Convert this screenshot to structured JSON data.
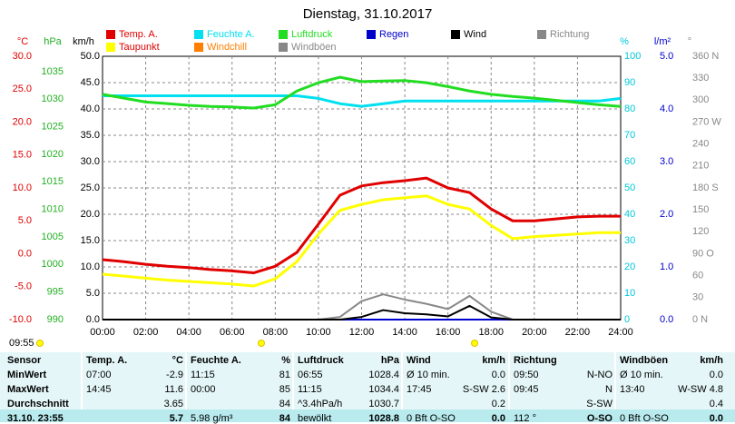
{
  "chart_data": {
    "type": "line",
    "title": "Dienstag, 31.10.2017",
    "x": [
      0,
      1,
      2,
      3,
      4,
      5,
      6,
      7,
      8,
      9,
      10,
      11,
      12,
      13,
      14,
      15,
      16,
      17,
      18,
      19,
      20,
      21,
      22,
      23,
      24
    ],
    "xlim": [
      0,
      24
    ],
    "xticks": [
      {
        "value": 0,
        "label": "00:00"
      },
      {
        "value": 2,
        "label": "02:00"
      },
      {
        "value": 4,
        "label": "04:00"
      },
      {
        "value": 6,
        "label": "06:00"
      },
      {
        "value": 8,
        "label": "08:00"
      },
      {
        "value": 10,
        "label": "10:00"
      },
      {
        "value": 12,
        "label": "12:00"
      },
      {
        "value": 14,
        "label": "14:00"
      },
      {
        "value": 16,
        "label": "16:00"
      },
      {
        "value": 18,
        "label": "18:00"
      },
      {
        "value": 20,
        "label": "20:00"
      },
      {
        "value": 22,
        "label": "22:00"
      },
      {
        "value": 24,
        "label": "24:00"
      }
    ],
    "grid": true,
    "axes": {
      "temp": {
        "label": "°C",
        "color": "#e00000",
        "lim": [
          -10,
          30
        ],
        "ticks": [
          {
            "value": 30,
            "label": "30.0"
          },
          {
            "value": 25,
            "label": "25.0"
          },
          {
            "value": 20,
            "label": "20.0"
          },
          {
            "value": 15,
            "label": "15.0"
          },
          {
            "value": 10,
            "label": "10.0"
          },
          {
            "value": 5,
            "label": "5.0"
          },
          {
            "value": 0,
            "label": "0.0"
          },
          {
            "value": -5,
            "label": "-5.0"
          },
          {
            "value": -10,
            "label": "-10.0"
          }
        ]
      },
      "hpa": {
        "label": "hPa",
        "color": "#22b022",
        "lim": [
          990,
          1037.8
        ],
        "ticks": [
          1035,
          1030,
          1025,
          1020,
          1015,
          1010,
          1005,
          1000,
          995,
          990
        ]
      },
      "kmh": {
        "label": "km/h",
        "color": "#000000",
        "lim": [
          0,
          50
        ],
        "ticks": [
          {
            "value": 50,
            "label": "50.0"
          },
          {
            "value": 45,
            "label": "45.0"
          },
          {
            "value": 40,
            "label": "40.0"
          },
          {
            "value": 35,
            "label": "35.0"
          },
          {
            "value": 30,
            "label": "30.0"
          },
          {
            "value": 25,
            "label": "25.0"
          },
          {
            "value": 20,
            "label": "20.0"
          },
          {
            "value": 15,
            "label": "15.0"
          },
          {
            "value": 10,
            "label": "10.0"
          },
          {
            "value": 5,
            "label": "5.0"
          },
          {
            "value": 0,
            "label": "0.0"
          }
        ]
      },
      "pct": {
        "label": "%",
        "color": "#00c8d8",
        "lim": [
          0,
          100
        ],
        "ticks": [
          100,
          90,
          80,
          70,
          60,
          50,
          40,
          30,
          20,
          10,
          0
        ]
      },
      "rain": {
        "label": "l/m²",
        "color": "#0000cc",
        "lim": [
          0,
          5
        ],
        "ticks": [
          {
            "value": 5,
            "label": "5.0"
          },
          {
            "value": 4,
            "label": "4.0"
          },
          {
            "value": 3,
            "label": "3.0"
          },
          {
            "value": 2,
            "label": "2.0"
          },
          {
            "value": 1,
            "label": "1.0"
          },
          {
            "value": 0,
            "label": "0.0"
          }
        ]
      },
      "dir": {
        "label": "°",
        "color": "#888888",
        "lim": [
          0,
          360
        ],
        "ticks": [
          {
            "value": 360,
            "label": "360 N"
          },
          330,
          300,
          {
            "value": 270,
            "label": "270 W"
          },
          240,
          210,
          {
            "value": 180,
            "label": "180 S"
          },
          150,
          120,
          {
            "value": 90,
            "label": "90 O"
          },
          60,
          30,
          {
            "value": 0,
            "label": "0 N"
          }
        ]
      }
    },
    "series": [
      {
        "name": "Temp. A.",
        "color": "#e00000",
        "axis": "temp",
        "values": [
          -0.9,
          -1.2,
          -1.6,
          -1.9,
          -2.1,
          -2.4,
          -2.6,
          -2.9,
          -1.9,
          0.2,
          4.5,
          8.9,
          10.3,
          10.8,
          11.1,
          11.5,
          10.0,
          9.3,
          6.8,
          5.0,
          5.0,
          5.3,
          5.6,
          5.7,
          5.7
        ]
      },
      {
        "name": "Taupunkt",
        "color": "#ffff00",
        "axis": "temp",
        "values": [
          -3.1,
          -3.4,
          -3.7,
          -4.0,
          -4.2,
          -4.4,
          -4.6,
          -4.9,
          -3.8,
          -1.2,
          3.0,
          6.6,
          7.5,
          8.2,
          8.5,
          8.8,
          7.5,
          6.8,
          4.3,
          2.3,
          2.6,
          2.8,
          3.0,
          3.2,
          3.2
        ]
      },
      {
        "name": "Feuchte A.",
        "color": "#00e0f0",
        "axis": "pct",
        "values": [
          85,
          85,
          85,
          85,
          85,
          85,
          85,
          85,
          85,
          85,
          84,
          82,
          81,
          82,
          83,
          83,
          83,
          83,
          83,
          83,
          83,
          83,
          83,
          83,
          84
        ]
      },
      {
        "name": "Luftdruck",
        "color": "#22dd22",
        "axis": "hpa",
        "values": [
          1030.9,
          1030.2,
          1029.5,
          1029.2,
          1028.9,
          1028.7,
          1028.6,
          1028.4,
          1029.0,
          1031.5,
          1033.0,
          1034.0,
          1033.2,
          1033.3,
          1033.4,
          1033.0,
          1032.3,
          1031.5,
          1030.9,
          1030.5,
          1030.2,
          1029.8,
          1029.4,
          1029.0,
          1028.7
        ]
      },
      {
        "name": "Regen",
        "color": "#0000cc",
        "axis": "rain",
        "values": [
          0,
          0,
          0,
          0,
          0,
          0,
          0,
          0,
          0,
          0,
          0,
          0,
          0,
          0,
          0,
          0,
          0,
          0,
          0,
          0,
          0,
          0,
          0,
          0,
          0
        ]
      },
      {
        "name": "Windböen",
        "color": "#888888",
        "axis": "kmh",
        "values": [
          0,
          0,
          0,
          0,
          0,
          0,
          0,
          0,
          0,
          0,
          0,
          0.5,
          3.5,
          4.8,
          3.8,
          3.0,
          2.0,
          4.5,
          1.5,
          0,
          0,
          0,
          0,
          0,
          0
        ]
      },
      {
        "name": "Wind",
        "color": "#000000",
        "axis": "kmh",
        "values": [
          0,
          0,
          0,
          0,
          0,
          0,
          0,
          0,
          0,
          0,
          0,
          0,
          0.5,
          1.8,
          1.2,
          1.0,
          0.6,
          2.6,
          0.4,
          0,
          0,
          0,
          0,
          0,
          0
        ]
      }
    ],
    "extra_legend": [
      {
        "name": "Windchill",
        "color": "#ff8000"
      },
      {
        "name": "Richtung",
        "color": "#888888"
      }
    ],
    "time_marker": "09:55"
  },
  "table": {
    "header": [
      {
        "name": "Sensor"
      },
      {
        "name": "Temp. A.",
        "unit": "°C"
      },
      {
        "name": "Feuchte A.",
        "unit": "%"
      },
      {
        "name": "Luftdruck",
        "unit": "hPa"
      },
      {
        "name": "Wind",
        "unit": "km/h"
      },
      {
        "name": "Richtung"
      },
      {
        "name": "Windböen",
        "unit": "km/h"
      }
    ],
    "rows": [
      {
        "label": "MinWert",
        "cells": [
          {
            "left": "07:00",
            "right": "-2.9"
          },
          {
            "left": "11:15",
            "right": "81"
          },
          {
            "left": "06:55",
            "right": "1028.4"
          },
          {
            "left": "Ø 10 min.",
            "right": "0.0"
          },
          {
            "left": "09:50",
            "right": "N-NO"
          },
          {
            "left": "Ø 10 min.",
            "right": "0.0"
          }
        ]
      },
      {
        "label": "MaxWert",
        "cells": [
          {
            "left": "14:45",
            "right": "11.6"
          },
          {
            "left": "00:00",
            "right": "85"
          },
          {
            "left": "11:15",
            "right": "1034.4"
          },
          {
            "left": "17:45",
            "right": "S-SW 2.6"
          },
          {
            "left": "09:45",
            "right": "N"
          },
          {
            "left": "13:40",
            "right": "W-SW 4.8"
          }
        ]
      },
      {
        "label": "Durchschnitt",
        "cells": [
          {
            "right": "3.65"
          },
          {
            "right": "84"
          },
          {
            "left": "^3.4hPa/h",
            "right": "1030.7"
          },
          {
            "right": "0.2"
          },
          {
            "right": "S-SW"
          },
          {
            "right": "0.4"
          }
        ]
      },
      {
        "label": "31.10. 23:55",
        "cells": [
          {
            "right": "5.7"
          },
          {
            "left": "5.98 g/m³",
            "right": "84"
          },
          {
            "left": "bewölkt",
            "right": "1028.8"
          },
          {
            "left": "0 Bft O-SO",
            "right": "0.0"
          },
          {
            "left": "112 °",
            "right": "O-SO"
          },
          {
            "left": "0 Bft O-SO",
            "right": "0.0"
          }
        ]
      }
    ]
  }
}
